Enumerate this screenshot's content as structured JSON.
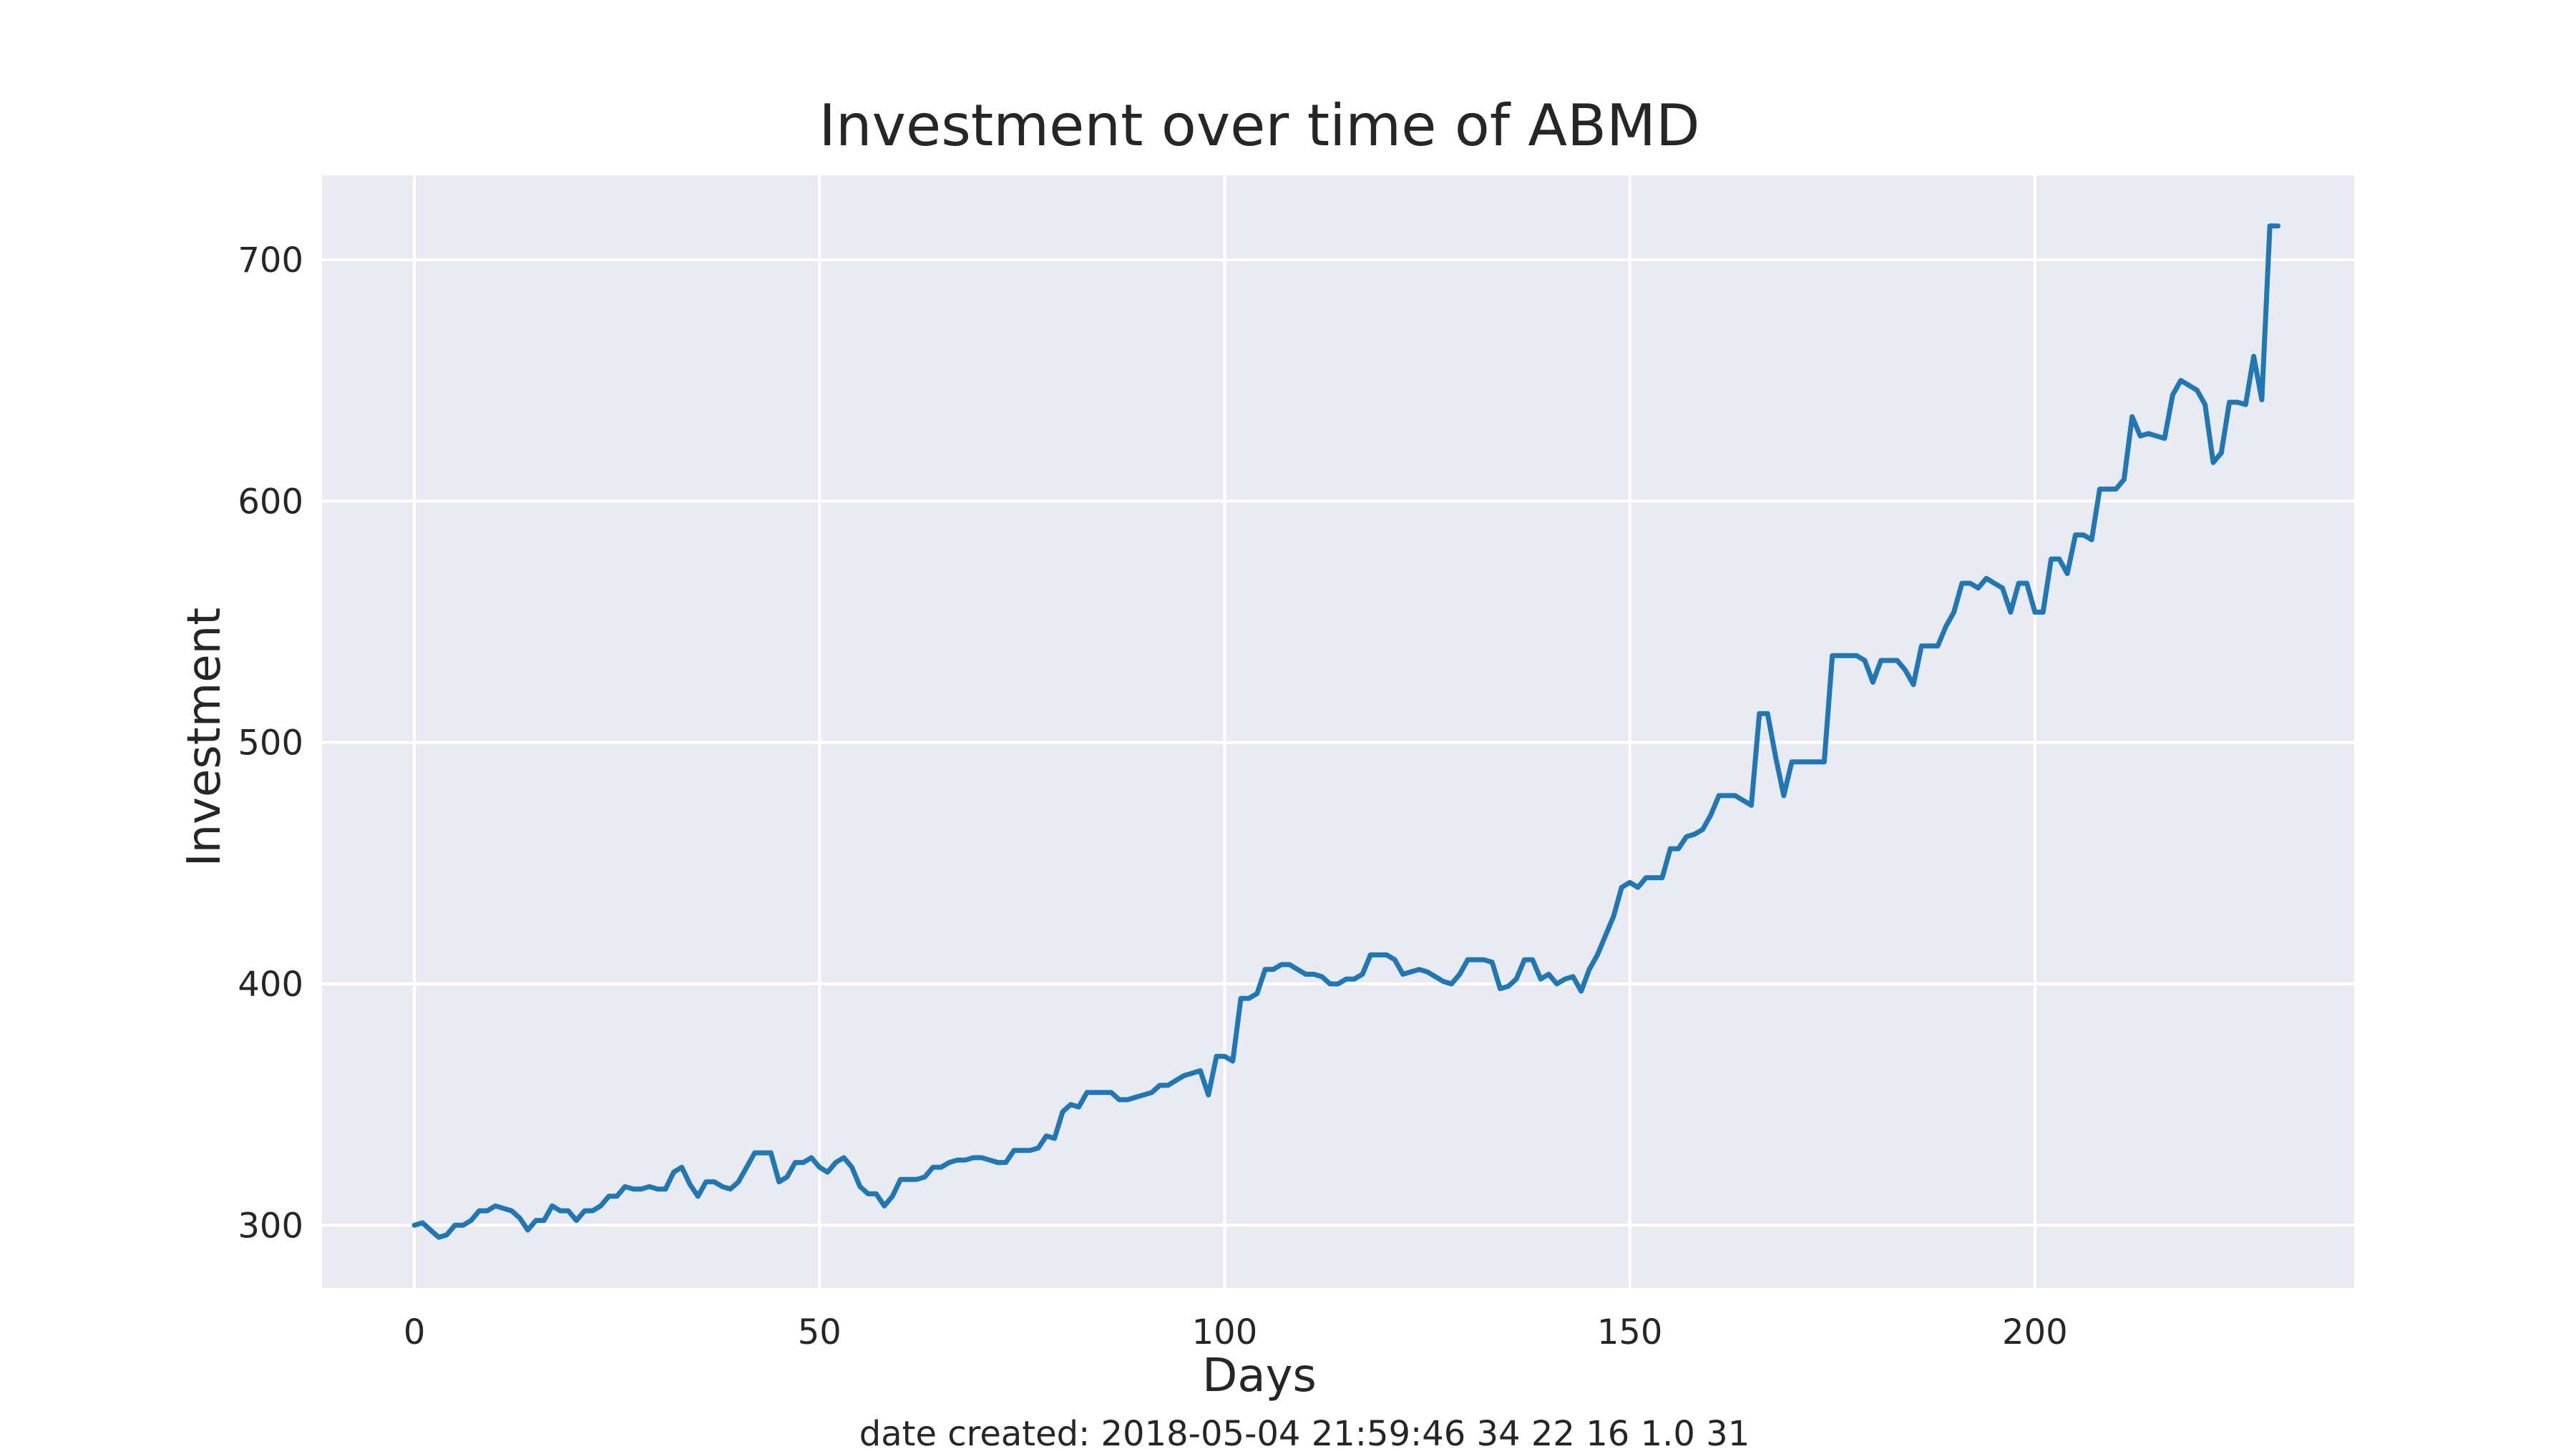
{
  "chart_data": {
    "type": "line",
    "title": "Investment over time of ABMD",
    "xlabel": "Days",
    "ylabel": "Investment",
    "xlim": [
      -11.4,
      239.4
    ],
    "ylim": [
      274,
      735
    ],
    "xticks": [
      0,
      50,
      100,
      150,
      200
    ],
    "yticks": [
      300,
      400,
      500,
      600,
      700
    ],
    "xtick_labels": [
      "0",
      "50",
      "100",
      "150",
      "200"
    ],
    "ytick_labels": [
      "300",
      "400",
      "500",
      "600",
      "700"
    ],
    "grid": true,
    "footer": "date created: 2018-05-04 21:59:46 34 22 16 1.0 31",
    "colors": {
      "background": "#eaeaf2",
      "grid": "#ffffff",
      "line": "#1f77b4",
      "text": "#262626"
    },
    "series": [
      {
        "values": [
          300,
          301,
          298,
          295,
          296,
          300,
          300,
          302,
          306,
          306,
          308,
          307,
          306,
          303,
          298,
          302,
          302,
          308,
          306,
          306,
          302,
          306,
          306,
          308,
          312,
          312,
          316,
          315,
          315,
          316,
          315,
          315,
          322,
          324,
          317,
          312,
          318,
          318,
          316,
          315,
          318,
          324,
          330,
          330,
          330,
          318,
          320,
          326,
          326,
          328,
          324,
          322,
          326,
          328,
          324,
          316,
          313,
          313,
          308,
          312,
          319,
          319,
          319,
          320,
          324,
          324,
          326,
          327,
          327,
          328,
          328,
          327,
          326,
          326,
          331,
          331,
          331,
          332,
          337,
          336,
          347,
          350,
          349,
          355,
          355,
          355,
          355,
          352,
          352,
          353,
          354,
          355,
          358,
          358,
          360,
          362,
          363,
          364,
          354,
          370,
          370,
          368,
          394,
          394,
          396,
          406,
          406,
          408,
          408,
          406,
          404,
          404,
          403,
          400,
          400,
          402,
          402,
          404,
          412,
          412,
          412,
          410,
          404,
          405,
          406,
          405,
          403,
          401,
          400,
          404,
          410,
          410,
          410,
          409,
          398,
          399,
          402,
          410,
          410,
          402,
          404,
          400,
          402,
          403,
          397,
          406,
          412,
          420,
          428,
          440,
          442,
          440,
          444,
          444,
          444,
          456,
          456,
          461,
          462,
          464,
          470,
          478,
          478,
          478,
          476,
          474,
          512,
          512,
          494,
          478,
          492,
          492,
          492,
          492,
          492,
          536,
          536,
          536,
          536,
          534,
          525,
          534,
          534,
          534,
          530,
          524,
          540,
          540,
          540,
          548,
          554,
          566,
          566,
          564,
          568,
          566,
          564,
          554,
          566,
          566,
          554,
          554,
          576,
          576,
          570,
          586,
          586,
          584,
          605,
          605,
          605,
          609,
          635,
          627,
          628,
          627,
          626,
          644,
          650,
          648,
          646,
          640,
          616,
          620,
          641,
          641,
          640,
          660,
          642,
          714,
          714
        ]
      }
    ]
  }
}
